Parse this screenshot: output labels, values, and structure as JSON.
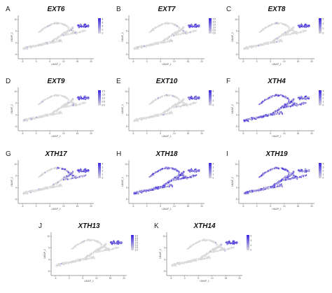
{
  "chart_data": {
    "type": "scatter",
    "xlabel": "UMAP_1",
    "ylabel": "UMAP_2",
    "x_ticks": [
      "-5",
      "0",
      "5",
      "10",
      "15",
      "20"
    ],
    "y_ticks": [
      "-5",
      "0",
      "5",
      "10"
    ],
    "colors": {
      "low": "#d9d9d9",
      "high": "#3b25e0"
    },
    "panels": [
      {
        "letter": "A",
        "gene": "EXT6",
        "expression": "tip",
        "legend": [
          "8",
          "6",
          "4",
          "2",
          "0"
        ]
      },
      {
        "letter": "B",
        "gene": "EXT7",
        "expression": "tip",
        "legend": [
          "2.5",
          "2.0",
          "1.5",
          "1.0",
          "0.5",
          "0.0"
        ]
      },
      {
        "letter": "C",
        "gene": "EXT8",
        "expression": "tip",
        "legend": [
          "6",
          "4",
          "2",
          "0"
        ]
      },
      {
        "letter": "D",
        "gene": "EXT9",
        "expression": "tip",
        "legend": [
          "2.0",
          "1.5",
          "1.0",
          "0.5",
          "0.0"
        ]
      },
      {
        "letter": "E",
        "gene": "EXT10",
        "expression": "tip",
        "legend": [
          "6",
          "4",
          "2",
          "0"
        ]
      },
      {
        "letter": "F",
        "gene": "XTH4",
        "expression": "broad",
        "legend": [
          "4",
          "3",
          "2",
          "1",
          "0"
        ]
      },
      {
        "letter": "G",
        "gene": "XTH17",
        "expression": "upper",
        "legend": [
          "4",
          "3",
          "2",
          "1",
          "0"
        ]
      },
      {
        "letter": "H",
        "gene": "XTH18",
        "expression": "broad",
        "legend": [
          "4",
          "3",
          "2",
          "1",
          "0"
        ]
      },
      {
        "letter": "I",
        "gene": "XTH19",
        "expression": "broad",
        "legend": [
          "4",
          "3",
          "2",
          "1",
          "0"
        ]
      },
      {
        "letter": "J",
        "gene": "XTH13",
        "expression": "tip",
        "legend": [
          "4.0",
          "3.5",
          "3.0",
          "2.5",
          "2.0",
          "1.5",
          "1.0"
        ]
      },
      {
        "letter": "K",
        "gene": "XTH14",
        "expression": "tip",
        "legend": [
          "6",
          "4",
          "2",
          "0"
        ]
      }
    ]
  }
}
